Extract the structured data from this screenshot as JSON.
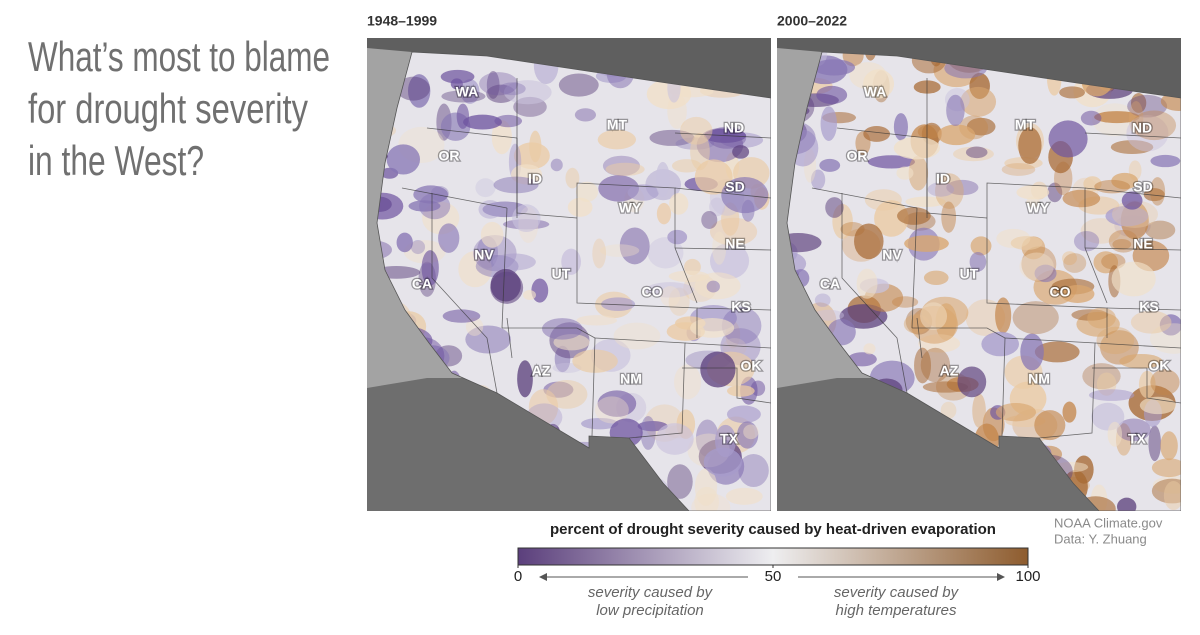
{
  "title_lines": [
    "What’s most to blame",
    "for drought severity",
    "in the West?"
  ],
  "maps": [
    {
      "period": "1948–1999",
      "states": [
        "WA",
        "OR",
        "ID",
        "MT",
        "ND",
        "SD",
        "WY",
        "NE",
        "NV",
        "UT",
        "CA",
        "CO",
        "KS",
        "AZ",
        "NM",
        "OK",
        "TX"
      ]
    },
    {
      "period": "2000–2022",
      "states": [
        "WA",
        "OR",
        "ID",
        "MT",
        "ND",
        "SD",
        "WY",
        "NE",
        "NV",
        "UT",
        "CA",
        "CO",
        "KS",
        "AZ",
        "NM",
        "OK",
        "TX"
      ]
    }
  ],
  "legend": {
    "title": "percent of drought severity caused by heat-driven evaporation",
    "range": [
      0,
      100
    ],
    "ticks": [
      0,
      50,
      100
    ],
    "colors": [
      "#5b3f7c",
      "#eeeef0",
      "#8e5c2e"
    ],
    "left_note": [
      "severity caused by",
      "low precipitation"
    ],
    "right_note": [
      "severity caused by",
      "high temperatures"
    ]
  },
  "credit": [
    "NOAA Climate.gov",
    "Data: Y. Zhuang"
  ]
}
